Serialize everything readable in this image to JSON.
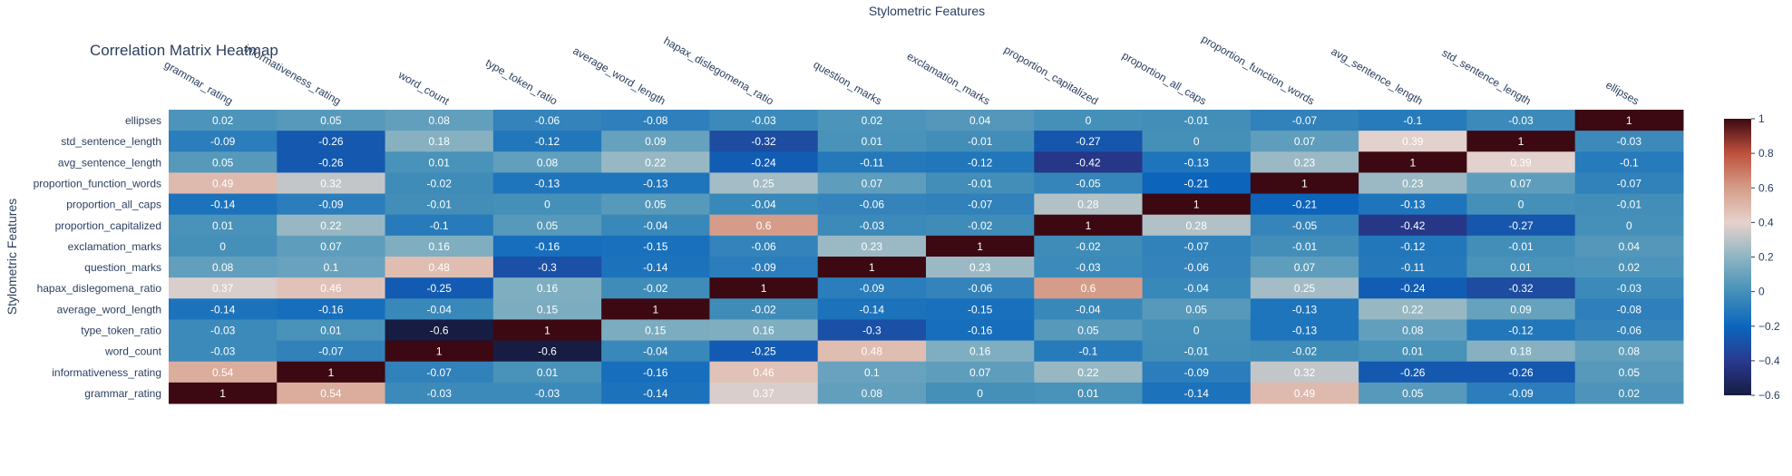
{
  "chart_data": {
    "type": "heatmap",
    "title": "Correlation Matrix Heatmap",
    "xlabel": "Stylometric Features",
    "ylabel": "Stylometric Features",
    "x_labels": [
      "grammar_rating",
      "informativeness_rating",
      "word_count",
      "type_token_ratio",
      "average_word_length",
      "hapax_dislegomena_ratio",
      "question_marks",
      "exclamation_marks",
      "proportion_capitalized",
      "proportion_all_caps",
      "proportion_function_words",
      "avg_sentence_length",
      "std_sentence_length",
      "ellipses"
    ],
    "y_labels": [
      "ellipses",
      "std_sentence_length",
      "avg_sentence_length",
      "proportion_function_words",
      "proportion_all_caps",
      "proportion_capitalized",
      "exclamation_marks",
      "question_marks",
      "hapax_dislegomena_ratio",
      "average_word_length",
      "type_token_ratio",
      "word_count",
      "informativeness_rating",
      "grammar_rating"
    ],
    "z": [
      [
        0.02,
        0.05,
        0.08,
        -0.06,
        -0.08,
        -0.03,
        0.02,
        0.04,
        -0.0,
        -0.01,
        -0.07,
        -0.1,
        -0.03,
        1.0
      ],
      [
        -0.09,
        -0.26,
        0.18,
        -0.12,
        0.09,
        -0.32,
        0.01,
        -0.01,
        -0.27,
        -0.0,
        0.07,
        0.39,
        1.0,
        -0.03
      ],
      [
        0.05,
        -0.26,
        0.01,
        0.08,
        0.22,
        -0.24,
        -0.11,
        -0.12,
        -0.42,
        -0.13,
        0.23,
        1.0,
        0.39,
        -0.1
      ],
      [
        0.49,
        0.32,
        -0.02,
        -0.13,
        -0.13,
        0.25,
        0.07,
        -0.01,
        -0.05,
        -0.21,
        1.0,
        0.23,
        0.07,
        -0.07
      ],
      [
        -0.14,
        -0.09,
        -0.01,
        0.0,
        0.05,
        -0.04,
        -0.06,
        -0.07,
        0.28,
        1.0,
        -0.21,
        -0.13,
        -0.0,
        -0.01
      ],
      [
        0.01,
        0.22,
        -0.1,
        0.05,
        -0.04,
        0.6,
        -0.03,
        -0.02,
        1.0,
        0.28,
        -0.05,
        -0.42,
        -0.27,
        -0.0
      ],
      [
        -0.0,
        0.07,
        0.16,
        -0.16,
        -0.15,
        -0.06,
        0.23,
        1.0,
        -0.02,
        -0.07,
        -0.01,
        -0.12,
        -0.01,
        0.04
      ],
      [
        0.08,
        0.1,
        0.48,
        -0.3,
        -0.14,
        -0.09,
        1.0,
        0.23,
        -0.03,
        -0.06,
        0.07,
        -0.11,
        0.01,
        0.02
      ],
      [
        0.37,
        0.46,
        -0.25,
        0.16,
        -0.02,
        1.0,
        -0.09,
        -0.06,
        0.6,
        -0.04,
        0.25,
        -0.24,
        -0.32,
        -0.03
      ],
      [
        -0.14,
        -0.16,
        -0.04,
        0.15,
        1.0,
        -0.02,
        -0.14,
        -0.15,
        -0.04,
        0.05,
        -0.13,
        0.22,
        0.09,
        -0.08
      ],
      [
        -0.03,
        0.01,
        -0.6,
        1.0,
        0.15,
        0.16,
        -0.3,
        -0.16,
        0.05,
        0.0,
        -0.13,
        0.08,
        -0.12,
        -0.06
      ],
      [
        -0.03,
        -0.07,
        1.0,
        -0.6,
        -0.04,
        -0.25,
        0.48,
        0.16,
        -0.1,
        -0.01,
        -0.02,
        0.01,
        0.18,
        0.08
      ],
      [
        0.54,
        1.0,
        -0.07,
        0.01,
        -0.16,
        0.46,
        0.1,
        0.07,
        0.22,
        -0.09,
        0.32,
        -0.26,
        -0.26,
        0.05
      ],
      [
        1.0,
        0.54,
        -0.03,
        -0.03,
        -0.14,
        0.37,
        0.08,
        -0.0,
        0.01,
        -0.14,
        0.49,
        0.05,
        -0.09,
        0.02
      ]
    ],
    "zlim": [
      -0.6,
      1.0
    ],
    "colorbar_ticks": [
      1,
      0.8,
      0.6,
      0.4,
      0.2,
      0,
      -0.2,
      -0.4,
      -0.6
    ],
    "colorscale": "balance",
    "xaxis_side": "top",
    "legend": "colorbar-right"
  }
}
